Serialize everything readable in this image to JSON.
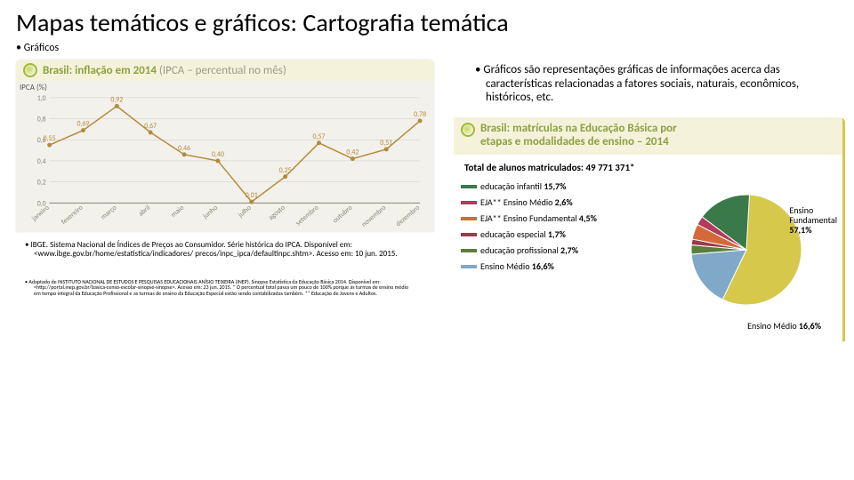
{
  "title": "Mapas temáticos e gráficos: Cartografia temática",
  "subhead": "Gráficos",
  "description": "Gráficos são representações gráficas de informações acerca das características relacionadas a fatores sociais, naturais, econômicos, históricos, etc.",
  "line_chart": {
    "type": "line",
    "header_prefix": "Brasil: inflação em 2014 ",
    "header_suffix": "(IPCA – percentual no mês)",
    "header_bg": "#f5f2dc",
    "header_prefix_color": "#8aa23f",
    "header_suffix_color": "#9a9a88",
    "bulb_border": "#9fbb3a",
    "bulb_fill": "#c7d85e",
    "body_bg": "#f3f1ec",
    "grid_color": "#cfccc2",
    "axis_color": "#8a8676",
    "line_color": "#b48a3a",
    "point_fill": "#b48a3a",
    "value_label_color": "#b48a3a",
    "month_label_color": "#8a8676",
    "ylabel": "IPCA (%)",
    "label_fontsize": 8,
    "ylim": [
      0,
      1.0
    ],
    "ytick_step": 0.2,
    "months": [
      "janeiro",
      "fevereiro",
      "março",
      "abril",
      "maio",
      "junho",
      "julho",
      "agosto",
      "setembro",
      "outubro",
      "novembro",
      "dezembro"
    ],
    "values": [
      0.55,
      0.69,
      0.92,
      0.67,
      0.46,
      0.4,
      0.01,
      0.25,
      0.57,
      0.42,
      0.51,
      0.78
    ]
  },
  "pie_chart": {
    "type": "pie",
    "header_line1": "Brasil: matrículas na Educação Básica por",
    "header_line2": "etapas e modalidades de ensino – 2014",
    "header_bg": "#f5f2dc",
    "header_color": "#8aa23f",
    "border_color": "#d6c84a",
    "bulb_border": "#9fbb3a",
    "bulb_fill": "#c7d85e",
    "total_label": "Total de alunos matriculados: 49 771 371*",
    "slices": [
      {
        "label": "Ensino Fundamental",
        "pct": 57.1,
        "color": "#d6c84a",
        "pct_text": "57,1%"
      },
      {
        "label": "Ensino Médio",
        "pct": 16.6,
        "color": "#7fa8c9",
        "pct_text": "16,6%"
      },
      {
        "label": "educação profissional",
        "pct": 2.7,
        "color": "#5b7f3a",
        "pct_text": "2,7%"
      },
      {
        "label": "educação especial",
        "pct": 1.7,
        "color": "#9a3a4a",
        "pct_text": "1,7%"
      },
      {
        "label": "EJA** Ensino Fundamental",
        "pct": 4.5,
        "color": "#d46a3a",
        "pct_text": "4,5%"
      },
      {
        "label": "EJA** Ensino Médio",
        "pct": 2.6,
        "color": "#b43a5a",
        "pct_text": "2,6%"
      },
      {
        "label": "educação infantil",
        "pct": 15.7,
        "color": "#3a7a4a",
        "pct_text": "15,7%"
      }
    ],
    "legend_order": [
      "educação infantil",
      "EJA** Ensino Médio",
      "EJA** Ensino Fundamental",
      "educação especial",
      "educação profissional",
      "Ensino Médio"
    ],
    "big_labels": [
      {
        "label": "Ensino",
        "label2": "Fundamental",
        "pct": "57,1%"
      },
      {
        "label": "Ensino Médio",
        "pct": "16,6%"
      }
    ]
  },
  "citation1": "IBGE. Sistema Nacional de Índices de Preços ao Consumidor. Série histórica do IPCA. Disponível em: <www.ibge.gov.br/home/estatistica/indicadores/ precos/inpc_ipca/defaultinpc.shtm>. Acesso em: 10 jun. 2015.",
  "citation2": "Adaptado de INSTITUTO NACIONAL DE ESTUDOS E PESQUISAS EDUCACIONAIS ANÍSIO TEIXEIRA (INEP). Sinopse Estatística da Educação Básica 2014. Disponível em: <http://portal.inep.gov.br/basica-censo-escolar-sinopse-sinopse>. Acesso em: 23 jun. 2015. * O percentual total passa um pouco de 100% porque as turmas de ensino médio em tempo integral da Educação Profissional e as turmas de ensino da Educação Especial estão sendo contabilizadas também. ** Educação de Jovens e Adultos."
}
